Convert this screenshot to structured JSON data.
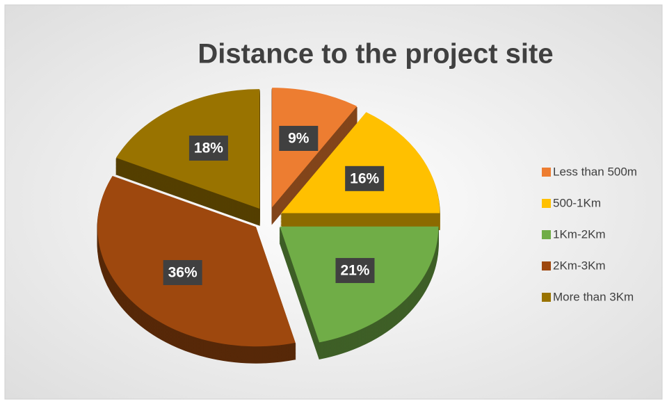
{
  "chart_data": {
    "type": "pie",
    "title": "Distance to the project site",
    "categories": [
      "Less than 500m",
      "500-1Km",
      "1Km-2Km",
      "2Km-3Km",
      "More than 3Km"
    ],
    "values": [
      9,
      16,
      21,
      36,
      18
    ],
    "value_labels": [
      "9%",
      "16%",
      "21%",
      "36%",
      "18%"
    ],
    "colors": [
      "#ed7d31",
      "#ffc000",
      "#70ad47",
      "#9e480e",
      "#997300"
    ],
    "legend": "right"
  }
}
